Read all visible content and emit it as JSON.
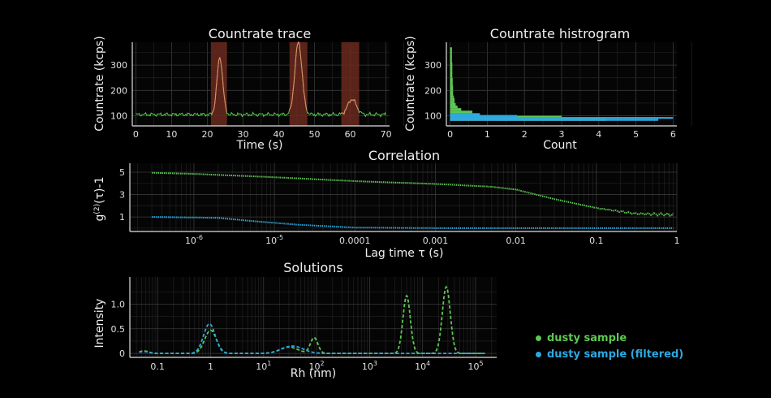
{
  "colors": {
    "green": "#5cc853",
    "blue": "#2ea8e0",
    "shade": "#6b2a1f",
    "trace_peak": "#e58a6a"
  },
  "legend": [
    {
      "label": "dusty sample",
      "color": "#5cc853"
    },
    {
      "label": "dusty sample (filtered)",
      "color": "#2ea8e0"
    }
  ],
  "chart_data": [
    {
      "id": "trace",
      "type": "line",
      "title": "Countrate trace",
      "xlabel": "Time (s)",
      "ylabel": "Countrate (kcps)",
      "xlim": [
        -1,
        71
      ],
      "ylim": [
        60,
        390
      ],
      "xticks": [
        0,
        10,
        20,
        30,
        40,
        50,
        60,
        70
      ],
      "yticks": [
        100,
        200,
        300
      ],
      "shaded_intervals": [
        [
          21,
          25.5
        ],
        [
          43,
          48
        ],
        [
          57.5,
          62.5
        ]
      ],
      "baseline": 105,
      "peaks": [
        {
          "center": 23.5,
          "width": 0.8,
          "height": 330
        },
        {
          "center": 45.5,
          "width": 1.0,
          "height": 390
        },
        {
          "center": 60.5,
          "width": 1.2,
          "height": 165
        }
      ]
    },
    {
      "id": "hist",
      "type": "bar",
      "title": "Countrate histrogram",
      "xlabel": "Count",
      "ylabel": "Countrate (kcps)",
      "xlim": [
        -0.1,
        6.1
      ],
      "ylim": [
        60,
        390
      ],
      "xticks": [
        0,
        1,
        2,
        3,
        4,
        5,
        6
      ],
      "yticks": [
        100,
        200,
        300
      ],
      "series": [
        {
          "name": "dusty sample",
          "color": "#5cc853",
          "bins": [
            [
              80,
              90,
              4.2
            ],
            [
              90,
              100,
              3.0
            ],
            [
              100,
              110,
              0.8
            ],
            [
              110,
              120,
              0.6
            ],
            [
              120,
              130,
              0.3
            ],
            [
              130,
              140,
              0.2
            ],
            [
              140,
              150,
              0.15
            ],
            [
              150,
              160,
              0.12
            ],
            [
              160,
              170,
              0.12
            ],
            [
              170,
              180,
              0.1
            ],
            [
              180,
              200,
              0.08
            ],
            [
              200,
              220,
              0.08
            ],
            [
              220,
              250,
              0.07
            ],
            [
              250,
              280,
              0.06
            ],
            [
              280,
              310,
              0.06
            ],
            [
              310,
              340,
              0.05
            ],
            [
              340,
              370,
              0.05
            ]
          ]
        },
        {
          "name": "dusty sample (filtered)",
          "color": "#2ea8e0",
          "bins": [
            [
              80,
              88,
              5.6
            ],
            [
              88,
              95,
              6.0
            ],
            [
              95,
              103,
              1.8
            ],
            [
              103,
              110,
              0.8
            ]
          ]
        }
      ]
    },
    {
      "id": "corr",
      "type": "scatter",
      "title": "Correlation",
      "xlabel": "Lag time τ (s)",
      "ylabel": "g(2)(τ)-1",
      "xscale": "log",
      "xlim": [
        1.6e-07,
        1.0
      ],
      "ylim": [
        -0.3,
        5.8
      ],
      "xticks": [
        {
          "v": 1e-06,
          "label": "10",
          "sup": "-6"
        },
        {
          "v": 1e-05,
          "label": "10",
          "sup": "-5"
        },
        {
          "v": 0.0001,
          "label": "0.0001",
          "sup": ""
        },
        {
          "v": 0.001,
          "label": "0.001",
          "sup": ""
        },
        {
          "v": 0.01,
          "label": "0.01",
          "sup": ""
        },
        {
          "v": 0.1,
          "label": "0.1",
          "sup": ""
        },
        {
          "v": 1,
          "label": "1",
          "sup": ""
        }
      ],
      "yticks": [
        1,
        3,
        5
      ],
      "series": [
        {
          "name": "dusty sample",
          "color": "#5cc853",
          "points": [
            [
              3e-07,
              4.95
            ],
            [
              1e-06,
              4.85
            ],
            [
              1e-05,
              4.55
            ],
            [
              0.0001,
              4.2
            ],
            [
              0.001,
              3.95
            ],
            [
              0.005,
              3.7
            ],
            [
              0.01,
              3.45
            ],
            [
              0.03,
              2.6
            ],
            [
              0.1,
              1.8
            ],
            [
              0.3,
              1.3
            ],
            [
              0.9,
              1.2
            ]
          ]
        },
        {
          "name": "dusty sample (filtered)",
          "color": "#2ea8e0",
          "points": [
            [
              3e-07,
              1.0
            ],
            [
              2e-06,
              0.92
            ],
            [
              6e-06,
              0.6
            ],
            [
              2e-05,
              0.3
            ],
            [
              0.0001,
              0.05
            ],
            [
              0.001,
              0.0
            ],
            [
              0.9,
              0.0
            ]
          ]
        }
      ]
    },
    {
      "id": "sol",
      "type": "line",
      "title": "Solutions",
      "xlabel": "Rh (nm)",
      "ylabel": "Intensity",
      "xscale": "log",
      "xlim": [
        0.03,
        250000
      ],
      "ylim": [
        -0.08,
        1.55
      ],
      "xticks": [
        {
          "v": 0.1,
          "label": "0.1",
          "sup": ""
        },
        {
          "v": 1,
          "label": "1",
          "sup": ""
        },
        {
          "v": 10,
          "label": "10",
          "sup": "1"
        },
        {
          "v": 100,
          "label": "10",
          "sup": "2"
        },
        {
          "v": 1000,
          "label": "10",
          "sup": "3"
        },
        {
          "v": 10000,
          "label": "10",
          "sup": "4"
        },
        {
          "v": 100000,
          "label": "10",
          "sup": "5"
        }
      ],
      "yticks": [
        0,
        0.5,
        1.0
      ],
      "ytick_labels": [
        "0",
        "0.5",
        "1.0"
      ],
      "series": [
        {
          "name": "dusty sample",
          "color": "#5cc853",
          "peaks": [
            [
              0.055,
              0.05,
              0.09
            ],
            [
              1.0,
              0.47,
              0.11
            ],
            [
              30,
              0.13,
              0.17
            ],
            [
              90,
              0.32,
              0.07
            ],
            [
              5000,
              1.17,
              0.07
            ],
            [
              28000,
              1.35,
              0.075
            ]
          ]
        },
        {
          "name": "dusty sample (filtered)",
          "color": "#2ea8e0",
          "peaks": [
            [
              0.055,
              0.04,
              0.09
            ],
            [
              0.95,
              0.6,
              0.11
            ],
            [
              35,
              0.15,
              0.2
            ]
          ]
        }
      ]
    }
  ]
}
